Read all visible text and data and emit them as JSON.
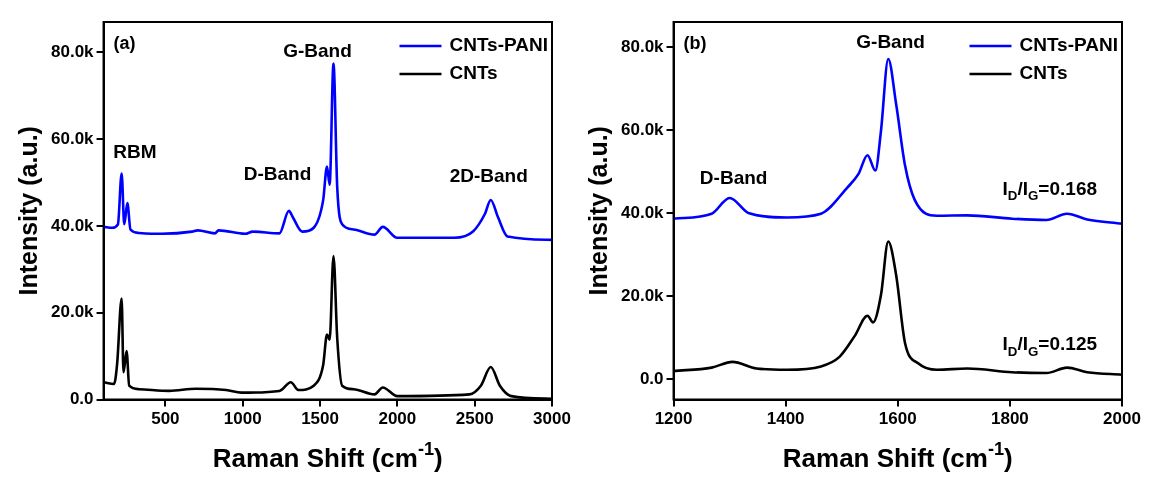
{
  "chart_data": [
    {
      "type": "line",
      "xlabel": "Raman Shift (cm$^{-1}$)",
      "ylabel": "Intensity (a.u.)",
      "xlim": [
        100,
        3000
      ],
      "ylim": [
        0,
        87000
      ],
      "xticks": [
        500,
        1000,
        1500,
        2000,
        2500,
        3000
      ],
      "yticks": [
        {
          "value": 0,
          "label": "0.0"
        },
        {
          "value": 20000,
          "label": "20.0k"
        },
        {
          "value": 40000,
          "label": "40.0k"
        },
        {
          "value": 60000,
          "label": "60.0k"
        },
        {
          "value": 80000,
          "label": "80.0k"
        }
      ],
      "grid": false,
      "legend": "top right",
      "marker": "none",
      "line_style": "solid",
      "annotations": [
        "(a)",
        "RBM",
        "D-Band",
        "G-Band",
        "2D-Band"
      ],
      "series": [
        {
          "name": "CNTs-PANI",
          "color": "#0000ff",
          "x": [
            102,
            156,
            193,
            217,
            234,
            254,
            274,
            328,
            475,
            672,
            709,
            820,
            844,
            1016,
            1065,
            1237,
            1299,
            1324,
            1385,
            1459,
            1520,
            1545,
            1562,
            1587,
            1611,
            1643,
            1717,
            1852,
            1906,
            1999,
            2368,
            2491,
            2565,
            2604,
            2651,
            2712,
            3000
          ],
          "values": [
            39800,
            39600,
            40400,
            52100,
            40400,
            45300,
            39200,
            38400,
            38200,
            38700,
            39000,
            38300,
            39000,
            38200,
            38700,
            38300,
            43500,
            42000,
            38700,
            39600,
            45900,
            53700,
            49500,
            77400,
            49000,
            40400,
            39200,
            38000,
            39800,
            37300,
            37300,
            38800,
            42700,
            46000,
            42000,
            37600,
            36800
          ]
        },
        {
          "name": "CNTs",
          "color": "#000000",
          "x": [
            102,
            168,
            188,
            217,
            229,
            249,
            266,
            328,
            525,
            697,
            893,
            992,
            1237,
            1311,
            1360,
            1459,
            1520,
            1545,
            1562,
            1587,
            1611,
            1643,
            1717,
            1852,
            1906,
            1999,
            2466,
            2540,
            2604,
            2663,
            2737,
            3000
          ],
          "values": [
            4000,
            3600,
            8300,
            23300,
            6300,
            11200,
            3200,
            2400,
            2000,
            2500,
            2200,
            1600,
            2000,
            4000,
            2200,
            3200,
            7900,
            15000,
            13800,
            33100,
            14200,
            3200,
            2400,
            1200,
            2800,
            800,
            1200,
            3200,
            7500,
            3200,
            800,
            200
          ]
        }
      ]
    },
    {
      "type": "line",
      "xlabel": "Raman Shift (cm$^{-1}$)",
      "ylabel": "Intensity (a.u.)",
      "xlim": [
        1200,
        2000
      ],
      "ylim": [
        -5000,
        86000
      ],
      "xticks": [
        1200,
        1400,
        1600,
        1800,
        2000
      ],
      "yticks": [
        {
          "value": 0,
          "label": "0.0"
        },
        {
          "value": 20000,
          "label": "20.0k"
        },
        {
          "value": 40000,
          "label": "40.0k"
        },
        {
          "value": 60000,
          "label": "60.0k"
        },
        {
          "value": 80000,
          "label": "80.0k"
        }
      ],
      "grid": false,
      "legend": "top right",
      "marker": "none",
      "line_style": "solid",
      "annotations": [
        "(b)",
        "D-Band",
        "G-Band",
        "I$_{D}$/I$_{G}$=0.168",
        "I$_{D}$/I$_{G}$=0.125"
      ],
      "series": [
        {
          "name": "CNTs-PANI",
          "color": "#0000ff",
          "x": [
            1200,
            1268,
            1300,
            1335,
            1402,
            1463,
            1510,
            1530,
            1546,
            1560,
            1570,
            1583,
            1597,
            1613,
            1630,
            1670,
            1724,
            1804,
            1865,
            1902,
            1938,
            2000
          ],
          "values": [
            38600,
            39800,
            43600,
            39900,
            38900,
            39800,
            46100,
            49400,
            53900,
            50200,
            59700,
            77100,
            66300,
            51400,
            43200,
            39300,
            39400,
            38600,
            38300,
            39800,
            38400,
            37400
          ]
        },
        {
          "name": "CNTs",
          "color": "#000000",
          "x": [
            1200,
            1268,
            1305,
            1348,
            1402,
            1463,
            1496,
            1523,
            1546,
            1556,
            1570,
            1583,
            1597,
            1613,
            1637,
            1670,
            1724,
            1804,
            1865,
            1902,
            1938,
            2000
          ],
          "values": [
            1900,
            2700,
            4100,
            2500,
            2200,
            3000,
            5300,
            10300,
            15200,
            13600,
            20200,
            33100,
            25100,
            8600,
            3700,
            2200,
            2500,
            1600,
            1400,
            2700,
            1600,
            1000
          ]
        }
      ]
    }
  ]
}
